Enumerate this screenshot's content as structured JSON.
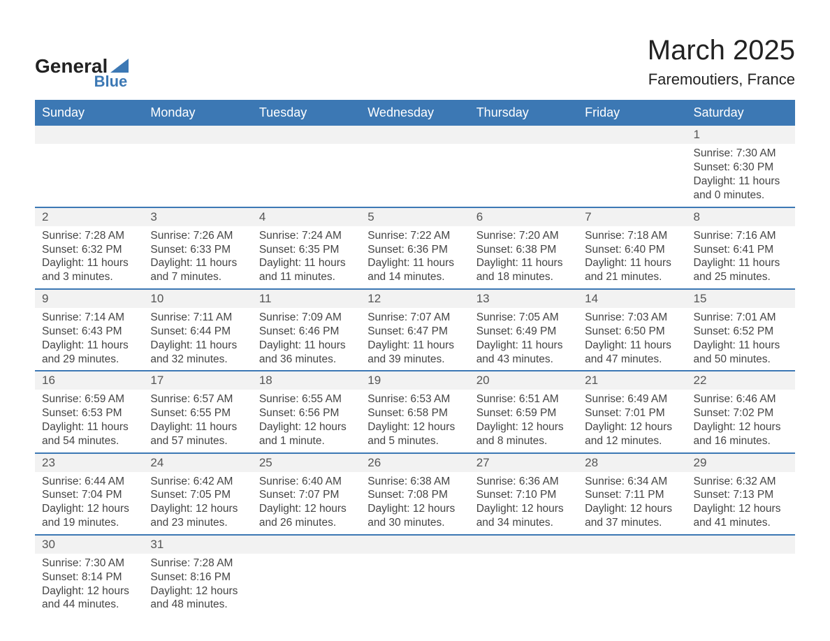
{
  "brand": {
    "name_part1": "General",
    "name_part2": "Blue",
    "text_color": "#222222",
    "accent_color": "#3c78b4"
  },
  "title": "March 2025",
  "subtitle": "Faremoutiers, France",
  "header_bg": "#3c78b4",
  "header_fg": "#ffffff",
  "daynum_bg": "#f2f2f2",
  "grid_border": "#3c78b4",
  "text_color": "#444444",
  "day_headers": [
    "Sunday",
    "Monday",
    "Tuesday",
    "Wednesday",
    "Thursday",
    "Friday",
    "Saturday"
  ],
  "weeks": [
    [
      null,
      null,
      null,
      null,
      null,
      null,
      {
        "n": "1",
        "sunrise": "Sunrise: 7:30 AM",
        "sunset": "Sunset: 6:30 PM",
        "d1": "Daylight: 11 hours",
        "d2": "and 0 minutes."
      }
    ],
    [
      {
        "n": "2",
        "sunrise": "Sunrise: 7:28 AM",
        "sunset": "Sunset: 6:32 PM",
        "d1": "Daylight: 11 hours",
        "d2": "and 3 minutes."
      },
      {
        "n": "3",
        "sunrise": "Sunrise: 7:26 AM",
        "sunset": "Sunset: 6:33 PM",
        "d1": "Daylight: 11 hours",
        "d2": "and 7 minutes."
      },
      {
        "n": "4",
        "sunrise": "Sunrise: 7:24 AM",
        "sunset": "Sunset: 6:35 PM",
        "d1": "Daylight: 11 hours",
        "d2": "and 11 minutes."
      },
      {
        "n": "5",
        "sunrise": "Sunrise: 7:22 AM",
        "sunset": "Sunset: 6:36 PM",
        "d1": "Daylight: 11 hours",
        "d2": "and 14 minutes."
      },
      {
        "n": "6",
        "sunrise": "Sunrise: 7:20 AM",
        "sunset": "Sunset: 6:38 PM",
        "d1": "Daylight: 11 hours",
        "d2": "and 18 minutes."
      },
      {
        "n": "7",
        "sunrise": "Sunrise: 7:18 AM",
        "sunset": "Sunset: 6:40 PM",
        "d1": "Daylight: 11 hours",
        "d2": "and 21 minutes."
      },
      {
        "n": "8",
        "sunrise": "Sunrise: 7:16 AM",
        "sunset": "Sunset: 6:41 PM",
        "d1": "Daylight: 11 hours",
        "d2": "and 25 minutes."
      }
    ],
    [
      {
        "n": "9",
        "sunrise": "Sunrise: 7:14 AM",
        "sunset": "Sunset: 6:43 PM",
        "d1": "Daylight: 11 hours",
        "d2": "and 29 minutes."
      },
      {
        "n": "10",
        "sunrise": "Sunrise: 7:11 AM",
        "sunset": "Sunset: 6:44 PM",
        "d1": "Daylight: 11 hours",
        "d2": "and 32 minutes."
      },
      {
        "n": "11",
        "sunrise": "Sunrise: 7:09 AM",
        "sunset": "Sunset: 6:46 PM",
        "d1": "Daylight: 11 hours",
        "d2": "and 36 minutes."
      },
      {
        "n": "12",
        "sunrise": "Sunrise: 7:07 AM",
        "sunset": "Sunset: 6:47 PM",
        "d1": "Daylight: 11 hours",
        "d2": "and 39 minutes."
      },
      {
        "n": "13",
        "sunrise": "Sunrise: 7:05 AM",
        "sunset": "Sunset: 6:49 PM",
        "d1": "Daylight: 11 hours",
        "d2": "and 43 minutes."
      },
      {
        "n": "14",
        "sunrise": "Sunrise: 7:03 AM",
        "sunset": "Sunset: 6:50 PM",
        "d1": "Daylight: 11 hours",
        "d2": "and 47 minutes."
      },
      {
        "n": "15",
        "sunrise": "Sunrise: 7:01 AM",
        "sunset": "Sunset: 6:52 PM",
        "d1": "Daylight: 11 hours",
        "d2": "and 50 minutes."
      }
    ],
    [
      {
        "n": "16",
        "sunrise": "Sunrise: 6:59 AM",
        "sunset": "Sunset: 6:53 PM",
        "d1": "Daylight: 11 hours",
        "d2": "and 54 minutes."
      },
      {
        "n": "17",
        "sunrise": "Sunrise: 6:57 AM",
        "sunset": "Sunset: 6:55 PM",
        "d1": "Daylight: 11 hours",
        "d2": "and 57 minutes."
      },
      {
        "n": "18",
        "sunrise": "Sunrise: 6:55 AM",
        "sunset": "Sunset: 6:56 PM",
        "d1": "Daylight: 12 hours",
        "d2": "and 1 minute."
      },
      {
        "n": "19",
        "sunrise": "Sunrise: 6:53 AM",
        "sunset": "Sunset: 6:58 PM",
        "d1": "Daylight: 12 hours",
        "d2": "and 5 minutes."
      },
      {
        "n": "20",
        "sunrise": "Sunrise: 6:51 AM",
        "sunset": "Sunset: 6:59 PM",
        "d1": "Daylight: 12 hours",
        "d2": "and 8 minutes."
      },
      {
        "n": "21",
        "sunrise": "Sunrise: 6:49 AM",
        "sunset": "Sunset: 7:01 PM",
        "d1": "Daylight: 12 hours",
        "d2": "and 12 minutes."
      },
      {
        "n": "22",
        "sunrise": "Sunrise: 6:46 AM",
        "sunset": "Sunset: 7:02 PM",
        "d1": "Daylight: 12 hours",
        "d2": "and 16 minutes."
      }
    ],
    [
      {
        "n": "23",
        "sunrise": "Sunrise: 6:44 AM",
        "sunset": "Sunset: 7:04 PM",
        "d1": "Daylight: 12 hours",
        "d2": "and 19 minutes."
      },
      {
        "n": "24",
        "sunrise": "Sunrise: 6:42 AM",
        "sunset": "Sunset: 7:05 PM",
        "d1": "Daylight: 12 hours",
        "d2": "and 23 minutes."
      },
      {
        "n": "25",
        "sunrise": "Sunrise: 6:40 AM",
        "sunset": "Sunset: 7:07 PM",
        "d1": "Daylight: 12 hours",
        "d2": "and 26 minutes."
      },
      {
        "n": "26",
        "sunrise": "Sunrise: 6:38 AM",
        "sunset": "Sunset: 7:08 PM",
        "d1": "Daylight: 12 hours",
        "d2": "and 30 minutes."
      },
      {
        "n": "27",
        "sunrise": "Sunrise: 6:36 AM",
        "sunset": "Sunset: 7:10 PM",
        "d1": "Daylight: 12 hours",
        "d2": "and 34 minutes."
      },
      {
        "n": "28",
        "sunrise": "Sunrise: 6:34 AM",
        "sunset": "Sunset: 7:11 PM",
        "d1": "Daylight: 12 hours",
        "d2": "and 37 minutes."
      },
      {
        "n": "29",
        "sunrise": "Sunrise: 6:32 AM",
        "sunset": "Sunset: 7:13 PM",
        "d1": "Daylight: 12 hours",
        "d2": "and 41 minutes."
      }
    ],
    [
      {
        "n": "30",
        "sunrise": "Sunrise: 7:30 AM",
        "sunset": "Sunset: 8:14 PM",
        "d1": "Daylight: 12 hours",
        "d2": "and 44 minutes."
      },
      {
        "n": "31",
        "sunrise": "Sunrise: 7:28 AM",
        "sunset": "Sunset: 8:16 PM",
        "d1": "Daylight: 12 hours",
        "d2": "and 48 minutes."
      },
      null,
      null,
      null,
      null,
      null
    ]
  ]
}
